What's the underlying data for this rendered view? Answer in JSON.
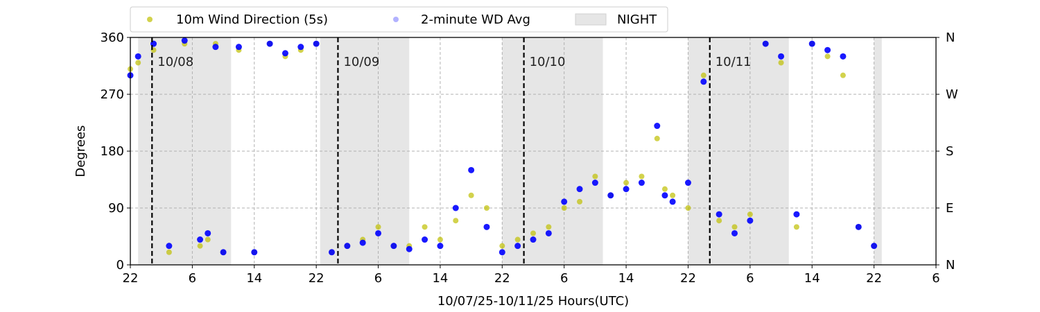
{
  "chart_data": {
    "type": "scatter",
    "xlabel": "10/07/25-10/11/25  Hours(UTC)",
    "ylabel": "Degrees",
    "x_range_hours_utc": [
      "10/07 22:00",
      "10/12 06:00"
    ],
    "ylim": [
      0,
      360
    ],
    "x_tick_labels": [
      "22",
      "6",
      "14",
      "22",
      "6",
      "14",
      "22",
      "6",
      "14",
      "22",
      "6",
      "14",
      "22",
      "6"
    ],
    "y_tick_labels": [
      "0",
      "90",
      "180",
      "270",
      "360"
    ],
    "right_tick_labels": [
      "N",
      "E",
      "S",
      "W",
      "N"
    ],
    "grid": true,
    "legend_position": "top",
    "legend": {
      "items": [
        {
          "label": "10m Wind Direction (5s)",
          "color": "#bfbf00",
          "kind": "marker"
        },
        {
          "label": "2-minute WD Avg",
          "color": "#0000ff",
          "kind": "marker"
        },
        {
          "label": "NIGHT",
          "color": "#d9d9d9",
          "kind": "patch"
        }
      ]
    },
    "day_markers": [
      {
        "label": "10/08",
        "time": "10/08 00:48"
      },
      {
        "label": "10/09",
        "time": "10/09 00:48"
      },
      {
        "label": "10/10",
        "time": "10/10 00:48"
      },
      {
        "label": "10/11",
        "time": "10/11 00:48"
      }
    ],
    "night_periods": [
      [
        "10/07 23:00",
        "10/08 11:00"
      ],
      [
        "10/08 22:30",
        "10/09 10:00"
      ],
      [
        "10/09 22:00",
        "10/10 11:00"
      ],
      [
        "10/10 22:00",
        "10/11 11:00"
      ],
      [
        "10/11 22:00",
        "10/11 23:00"
      ]
    ],
    "series": [
      {
        "name": "10m Wind Direction (5s)",
        "color": "#bfbf00",
        "x": [
          "10/07 22:00",
          "10/07 23:00",
          "10/08 01:00",
          "10/08 03:00",
          "10/08 05:00",
          "10/08 07:00",
          "10/08 08:00",
          "10/08 09:00",
          "10/08 10:00",
          "10/08 12:00",
          "10/08 14:00",
          "10/08 16:00",
          "10/08 18:00",
          "10/08 20:00",
          "10/08 22:00",
          "10/09 00:00",
          "10/09 02:00",
          "10/09 04:00",
          "10/09 06:00",
          "10/09 08:00",
          "10/09 10:00",
          "10/09 12:00",
          "10/09 14:00",
          "10/09 16:00",
          "10/09 18:00",
          "10/09 20:00",
          "10/09 22:00",
          "10/10 00:00",
          "10/10 02:00",
          "10/10 04:00",
          "10/10 06:00",
          "10/10 08:00",
          "10/10 10:00",
          "10/10 12:00",
          "10/10 14:00",
          "10/10 16:00",
          "10/10 18:00",
          "10/10 19:00",
          "10/10 20:00",
          "10/10 22:00",
          "10/11 00:00",
          "10/11 02:00",
          "10/11 04:00",
          "10/11 06:00",
          "10/11 08:00",
          "10/11 10:00",
          "10/11 12:00",
          "10/11 14:00",
          "10/11 16:00",
          "10/11 18:00",
          "10/11 20:00",
          "10/11 22:00"
        ],
        "y": [
          310,
          320,
          340,
          20,
          350,
          30,
          40,
          350,
          20,
          340,
          20,
          350,
          330,
          340,
          350,
          20,
          30,
          40,
          60,
          30,
          30,
          60,
          40,
          70,
          110,
          90,
          30,
          40,
          50,
          60,
          90,
          100,
          140,
          110,
          130,
          140,
          200,
          120,
          110,
          90,
          300,
          70,
          60,
          80,
          350,
          320,
          60,
          350,
          330,
          300,
          60,
          30
        ]
      },
      {
        "name": "2-minute WD Avg",
        "color": "#0000ff",
        "x": [
          "10/07 22:00",
          "10/07 23:00",
          "10/08 01:00",
          "10/08 03:00",
          "10/08 05:00",
          "10/08 07:00",
          "10/08 08:00",
          "10/08 09:00",
          "10/08 10:00",
          "10/08 12:00",
          "10/08 14:00",
          "10/08 16:00",
          "10/08 18:00",
          "10/08 20:00",
          "10/08 22:00",
          "10/09 00:00",
          "10/09 02:00",
          "10/09 04:00",
          "10/09 06:00",
          "10/09 08:00",
          "10/09 10:00",
          "10/09 12:00",
          "10/09 14:00",
          "10/09 16:00",
          "10/09 18:00",
          "10/09 20:00",
          "10/09 22:00",
          "10/10 00:00",
          "10/10 02:00",
          "10/10 04:00",
          "10/10 06:00",
          "10/10 08:00",
          "10/10 10:00",
          "10/10 12:00",
          "10/10 14:00",
          "10/10 16:00",
          "10/10 18:00",
          "10/10 19:00",
          "10/10 20:00",
          "10/10 22:00",
          "10/11 00:00",
          "10/11 02:00",
          "10/11 04:00",
          "10/11 06:00",
          "10/11 08:00",
          "10/11 10:00",
          "10/11 12:00",
          "10/11 14:00",
          "10/11 16:00",
          "10/11 18:00",
          "10/11 20:00",
          "10/11 22:00"
        ],
        "y": [
          300,
          330,
          350,
          30,
          355,
          40,
          50,
          345,
          20,
          345,
          20,
          350,
          335,
          345,
          350,
          20,
          30,
          35,
          50,
          30,
          25,
          40,
          30,
          90,
          150,
          60,
          20,
          30,
          40,
          50,
          100,
          120,
          130,
          110,
          120,
          130,
          220,
          110,
          100,
          130,
          290,
          80,
          50,
          70,
          350,
          330,
          80,
          350,
          340,
          330,
          60,
          30
        ]
      }
    ]
  }
}
